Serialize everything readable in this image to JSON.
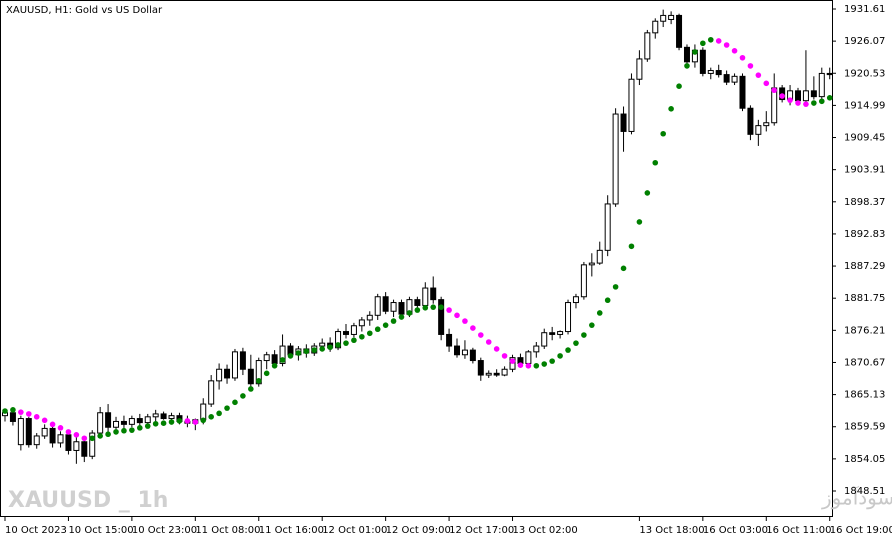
{
  "chart_data": {
    "type": "candlestick",
    "title": "XAUUSD, H1:  Gold vs US Dollar",
    "watermark": "XAUUSD _ 1h",
    "watermark_right": "انتشار در سایت سودآموز",
    "categories": [
      "10 Oct 2023",
      null,
      null,
      null,
      null,
      null,
      null,
      null,
      "10 Oct 15:00",
      null,
      null,
      null,
      null,
      null,
      null,
      null,
      "10 Oct 23:00",
      null,
      null,
      null,
      null,
      null,
      null,
      null,
      "11 Oct 08:00",
      null,
      null,
      null,
      null,
      null,
      null,
      null,
      "11 Oct 16:00",
      null,
      null,
      null,
      null,
      null,
      null,
      null,
      "12 Oct 01:00",
      null,
      null,
      null,
      null,
      null,
      null,
      null,
      "12 Oct 09:00",
      null,
      null,
      null,
      null,
      null,
      null,
      null,
      "12 Oct 17:00",
      null,
      null,
      null,
      null,
      null,
      null,
      null,
      "13 Oct 02:00",
      null,
      null,
      null,
      null,
      null,
      null,
      null,
      null,
      null,
      null,
      null,
      null,
      null,
      null,
      null,
      "13 Oct 18:00",
      null,
      null,
      null,
      null,
      null,
      null,
      null,
      "16 Oct 03:00",
      null,
      null,
      null,
      null,
      null,
      null,
      null,
      "16 Oct 11:00",
      null,
      null,
      null,
      null,
      null,
      null,
      null,
      "16 Oct 19:00"
    ],
    "open": [
      1861.5,
      1862.0,
      1856.5,
      1861.0,
      1856.5,
      1858.0,
      1859.3,
      1856.8,
      1858.2,
      1855.5,
      1857.0,
      1854.5,
      1858.5,
      1862.0,
      1859.5,
      1860.5,
      1860.0,
      1861.0,
      1860.3,
      1861.3,
      1861.8,
      1861.0,
      1861.5,
      1860.5,
      1860.2,
      1860.8,
      1863.5,
      1867.5,
      1869.5,
      1868.0,
      1872.5,
      1869.5,
      1867.0,
      1871.0,
      1872.0,
      1870.5,
      1873.5,
      1872.0,
      1873.0,
      1872.3,
      1873.5,
      1874.0,
      1873.2,
      1876.0,
      1875.5,
      1877.0,
      1878.0,
      1878.8,
      1882.0,
      1879.5,
      1881.0,
      1879.0,
      1881.5,
      1880.5,
      1883.5,
      1881.5,
      1875.5,
      1873.5,
      1872.0,
      1872.8,
      1871.0,
      1868.5,
      1868.8,
      1868.5,
      1869.5,
      1871.5,
      1870.5,
      1872.5,
      1873.5,
      1875.8,
      1875.5,
      1876.0,
      1881.0,
      1882.0,
      1887.5,
      1887.8,
      1890.0,
      1898.0,
      1913.5,
      1910.5,
      1919.5,
      1923.0,
      1927.5,
      1929.5,
      1929.8,
      1930.5,
      1925.0,
      1922.5,
      1924.5,
      1920.5,
      1921.0,
      1920.3,
      1919.0,
      1920.0,
      1914.5,
      1910.0,
      1911.5,
      1912.0,
      1918.0,
      1916.0,
      1917.5,
      1915.8,
      1917.5,
      1916.5,
      1920.5
    ],
    "high": [
      1862.5,
      1862.8,
      1861.5,
      1861.3,
      1858.5,
      1860.0,
      1860.2,
      1858.8,
      1859.0,
      1857.8,
      1858.0,
      1859.0,
      1863.0,
      1863.5,
      1861.3,
      1861.5,
      1861.5,
      1861.8,
      1861.8,
      1862.5,
      1862.2,
      1862.0,
      1862.0,
      1861.5,
      1861.0,
      1864.5,
      1868.5,
      1870.5,
      1870.3,
      1873.0,
      1873.2,
      1872.0,
      1871.5,
      1872.5,
      1872.8,
      1875.5,
      1874.0,
      1873.5,
      1873.8,
      1874.0,
      1874.8,
      1875.0,
      1876.5,
      1877.3,
      1877.5,
      1878.5,
      1879.5,
      1882.5,
      1882.8,
      1881.5,
      1881.5,
      1882.0,
      1882.0,
      1884.5,
      1885.5,
      1882.0,
      1876.5,
      1874.8,
      1874.5,
      1873.2,
      1871.5,
      1869.3,
      1869.5,
      1870.0,
      1872.0,
      1872.2,
      1872.8,
      1874.2,
      1876.5,
      1876.8,
      1876.2,
      1881.5,
      1882.5,
      1888.0,
      1889.5,
      1891.5,
      1899.5,
      1914.5,
      1914.8,
      1920.5,
      1924.5,
      1928.0,
      1930.0,
      1931.5,
      1931.2,
      1930.8,
      1925.5,
      1925.5,
      1925.0,
      1921.5,
      1922.0,
      1921.0,
      1920.5,
      1920.5,
      1915.0,
      1912.5,
      1914.0,
      1920.5,
      1918.5,
      1918.5,
      1918.0,
      1924.5,
      1920.0,
      1921.5,
      1921.5
    ],
    "low": [
      1860.5,
      1859.8,
      1855.5,
      1856.0,
      1855.8,
      1857.5,
      1856.0,
      1856.0,
      1854.8,
      1853.2,
      1853.5,
      1854.0,
      1858.0,
      1858.5,
      1858.8,
      1859.2,
      1859.5,
      1859.8,
      1859.8,
      1860.5,
      1860.8,
      1860.3,
      1860.0,
      1859.5,
      1859.0,
      1860.0,
      1863.0,
      1866.0,
      1867.0,
      1867.5,
      1868.5,
      1866.5,
      1866.5,
      1869.5,
      1869.8,
      1870.0,
      1871.5,
      1871.0,
      1871.5,
      1871.8,
      1872.8,
      1872.5,
      1872.8,
      1874.8,
      1875.0,
      1876.0,
      1877.0,
      1878.0,
      1879.0,
      1878.5,
      1878.5,
      1878.5,
      1880.0,
      1880.0,
      1880.8,
      1874.5,
      1872.5,
      1871.5,
      1871.3,
      1870.5,
      1867.5,
      1868.0,
      1868.2,
      1868.3,
      1869.0,
      1870.0,
      1870.0,
      1871.5,
      1873.0,
      1874.5,
      1874.8,
      1875.5,
      1880.0,
      1881.5,
      1885.5,
      1887.5,
      1889.0,
      1897.5,
      1907.0,
      1910.0,
      1918.5,
      1922.5,
      1926.5,
      1928.5,
      1929.0,
      1924.5,
      1922.0,
      1921.5,
      1920.0,
      1919.5,
      1919.8,
      1918.5,
      1918.5,
      1914.0,
      1909.0,
      1908.0,
      1910.5,
      1911.5,
      1915.5,
      1915.0,
      1915.0,
      1915.5,
      1916.0,
      1916.0,
      1919.5
    ],
    "close": [
      1862.0,
      1860.5,
      1861.0,
      1856.5,
      1858.0,
      1859.3,
      1856.8,
      1858.2,
      1855.5,
      1857.0,
      1854.5,
      1858.5,
      1862.0,
      1859.5,
      1860.5,
      1860.0,
      1861.0,
      1860.3,
      1861.3,
      1861.8,
      1861.0,
      1861.5,
      1860.5,
      1860.2,
      1860.8,
      1863.5,
      1867.5,
      1869.5,
      1868.0,
      1872.5,
      1869.5,
      1867.0,
      1871.0,
      1872.0,
      1870.5,
      1873.5,
      1872.0,
      1873.0,
      1872.3,
      1873.5,
      1874.0,
      1873.2,
      1876.0,
      1875.5,
      1877.0,
      1878.0,
      1878.8,
      1882.0,
      1879.5,
      1881.0,
      1879.0,
      1881.5,
      1880.5,
      1883.5,
      1881.5,
      1875.5,
      1873.5,
      1872.0,
      1872.8,
      1871.0,
      1868.5,
      1868.8,
      1868.5,
      1869.5,
      1871.5,
      1870.5,
      1872.5,
      1873.5,
      1875.8,
      1875.5,
      1876.0,
      1881.0,
      1882.0,
      1887.5,
      1887.8,
      1890.0,
      1898.0,
      1913.5,
      1910.5,
      1919.5,
      1923.0,
      1927.5,
      1929.5,
      1930.5,
      1930.5,
      1925.0,
      1922.5,
      1924.5,
      1920.5,
      1921.0,
      1920.3,
      1919.0,
      1920.0,
      1914.5,
      1910.0,
      1911.5,
      1912.0,
      1918.0,
      1916.0,
      1917.5,
      1915.8,
      1917.5,
      1916.5,
      1920.5,
      1920.3
    ],
    "indicator": {
      "values": [
        1862.3,
        1862.5,
        1862.1,
        1861.8,
        1861.3,
        1860.7,
        1860.0,
        1859.4,
        1858.7,
        1858.2,
        1857.6,
        1857.6,
        1858.0,
        1858.3,
        1858.7,
        1858.9,
        1859.0,
        1859.4,
        1859.7,
        1860.1,
        1860.2,
        1860.4,
        1860.6,
        1860.6,
        1860.4,
        1860.7,
        1861.3,
        1861.9,
        1862.8,
        1863.8,
        1864.9,
        1866.1,
        1867.5,
        1868.8,
        1870.1,
        1871.1,
        1871.8,
        1872.3,
        1872.6,
        1872.8,
        1873.0,
        1873.3,
        1873.7,
        1874.0,
        1874.5,
        1875.1,
        1875.7,
        1876.4,
        1877.1,
        1877.8,
        1878.5,
        1879.2,
        1879.7,
        1880.1,
        1880.2,
        1880.2,
        1879.7,
        1878.8,
        1877.8,
        1876.6,
        1875.4,
        1874.2,
        1873.0,
        1871.8,
        1870.9,
        1870.2,
        1870.1,
        1870.1,
        1870.4,
        1870.9,
        1871.8,
        1872.8,
        1874.0,
        1875.4,
        1877.1,
        1879.2,
        1881.4,
        1883.7,
        1886.9,
        1890.7,
        1894.9,
        1899.9,
        1905.1,
        1910.1,
        1914.4,
        1918.3,
        1921.8,
        1924.2,
        1925.7,
        1926.3,
        1926.1,
        1925.4,
        1924.4,
        1923.2,
        1921.8,
        1920.2,
        1918.8,
        1917.6,
        1916.6,
        1915.9,
        1915.4,
        1915.2,
        1915.4,
        1915.7,
        1916.3
      ],
      "colors": [
        "#008000",
        "#008000",
        "#ff00ff",
        "#ff00ff",
        "#ff00ff",
        "#ff00ff",
        "#ff00ff",
        "#ff00ff",
        "#ff00ff",
        "#ff00ff",
        "#ff00ff",
        "#008000",
        "#008000",
        "#008000",
        "#008000",
        "#008000",
        "#008000",
        "#008000",
        "#008000",
        "#008000",
        "#008000",
        "#008000",
        "#008000",
        "#ff00ff",
        "#ff00ff",
        "#008000",
        "#008000",
        "#008000",
        "#008000",
        "#008000",
        "#008000",
        "#008000",
        "#008000",
        "#008000",
        "#008000",
        "#008000",
        "#008000",
        "#008000",
        "#008000",
        "#008000",
        "#008000",
        "#008000",
        "#008000",
        "#008000",
        "#008000",
        "#008000",
        "#008000",
        "#008000",
        "#008000",
        "#008000",
        "#008000",
        "#008000",
        "#008000",
        "#008000",
        "#008000",
        "#008000",
        "#ff00ff",
        "#ff00ff",
        "#ff00ff",
        "#ff00ff",
        "#ff00ff",
        "#ff00ff",
        "#ff00ff",
        "#ff00ff",
        "#ff00ff",
        "#ff00ff",
        "#ff00ff",
        "#008000",
        "#008000",
        "#008000",
        "#008000",
        "#008000",
        "#008000",
        "#008000",
        "#008000",
        "#008000",
        "#008000",
        "#008000",
        "#008000",
        "#008000",
        "#008000",
        "#008000",
        "#008000",
        "#008000",
        "#008000",
        "#008000",
        "#008000",
        "#008000",
        "#008000",
        "#008000",
        "#ff00ff",
        "#ff00ff",
        "#ff00ff",
        "#ff00ff",
        "#ff00ff",
        "#ff00ff",
        "#ff00ff",
        "#ff00ff",
        "#ff00ff",
        "#ff00ff",
        "#ff00ff",
        "#ff00ff",
        "#008000",
        "#008000",
        "#008000"
      ]
    },
    "up_color": "#ffffff",
    "down_color": "#000000",
    "ylim": [
      1844.2,
      1933.16
    ],
    "yticks": [
      1931.61,
      1926.07,
      1920.53,
      1914.99,
      1909.45,
      1903.91,
      1898.37,
      1892.83,
      1887.29,
      1881.75,
      1876.21,
      1870.67,
      1865.13,
      1859.59,
      1854.05,
      1848.51
    ],
    "grid": false
  }
}
